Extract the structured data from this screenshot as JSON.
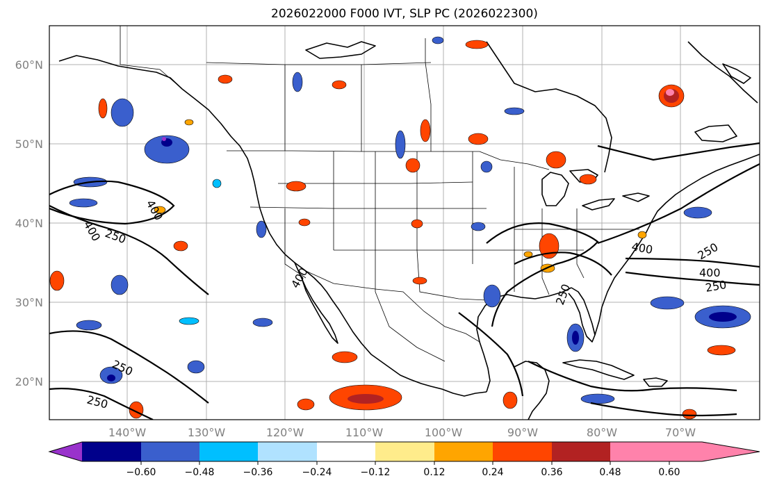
{
  "title": "2026022000 F000 IVT, SLP PC (2026022300)",
  "map": {
    "lat_labels": [
      "60°N",
      "50°N",
      "40°N",
      "30°N",
      "20°N"
    ],
    "lon_labels": [
      "140°W",
      "130°W",
      "120°W",
      "110°W",
      "100°W",
      "90°W",
      "80°W",
      "70°W"
    ],
    "contour_labels": [
      "400",
      "400",
      "250",
      "400",
      "250",
      "400",
      "250",
      "250",
      "250",
      "400",
      "250"
    ],
    "contour_color": "#000000"
  },
  "colorbar": {
    "colors": [
      "#9932CC",
      "#00008B",
      "#3A5FCD",
      "#00BFFF",
      "#B0E2FF",
      "#FFFFFF",
      "#FFEC8B",
      "#FFA500",
      "#FF4500",
      "#B22222",
      "#FF82AB"
    ],
    "ticks": [
      "−0.60",
      "−0.48",
      "−0.36",
      "−0.24",
      "−0.12",
      "0.12",
      "0.24",
      "0.36",
      "0.48",
      "0.60"
    ]
  }
}
